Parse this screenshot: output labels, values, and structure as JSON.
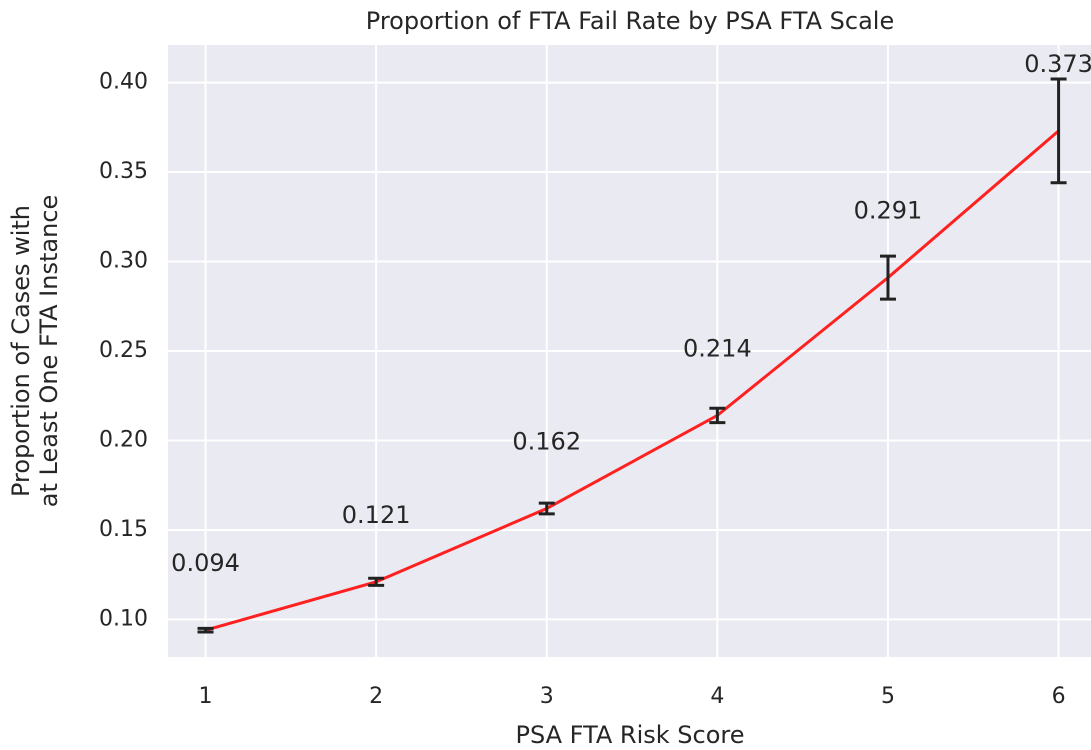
{
  "chart_data": {
    "type": "line",
    "title": "Proportion of FTA Fail Rate by PSA FTA Scale",
    "xlabel": "PSA FTA Risk Score",
    "ylabel": [
      "Proportion of Cases with",
      "at Least One FTA Instance"
    ],
    "x": [
      1,
      2,
      3,
      4,
      5,
      6
    ],
    "series": [
      {
        "color": "#ff2020",
        "values": [
          0.094,
          0.121,
          0.162,
          0.214,
          0.291,
          0.373
        ],
        "errors": [
          0.001,
          0.002,
          0.003,
          0.004,
          0.012,
          0.029
        ]
      }
    ],
    "error_color": "#222222",
    "xlim": [
      0.78,
      6.19
    ],
    "xticks": [
      1,
      2,
      3,
      4,
      5,
      6
    ],
    "ylim": [
      0.079,
      0.421
    ],
    "yticks": [
      {
        "value": 0.1,
        "label": "0.10"
      },
      0.15,
      {
        "value": 0.2,
        "label": "0.20"
      },
      0.25,
      {
        "value": 0.3,
        "label": "0.30"
      },
      0.35,
      {
        "value": 0.4,
        "label": "0.40"
      }
    ],
    "grid": true,
    "background": "#eaeaf2"
  }
}
